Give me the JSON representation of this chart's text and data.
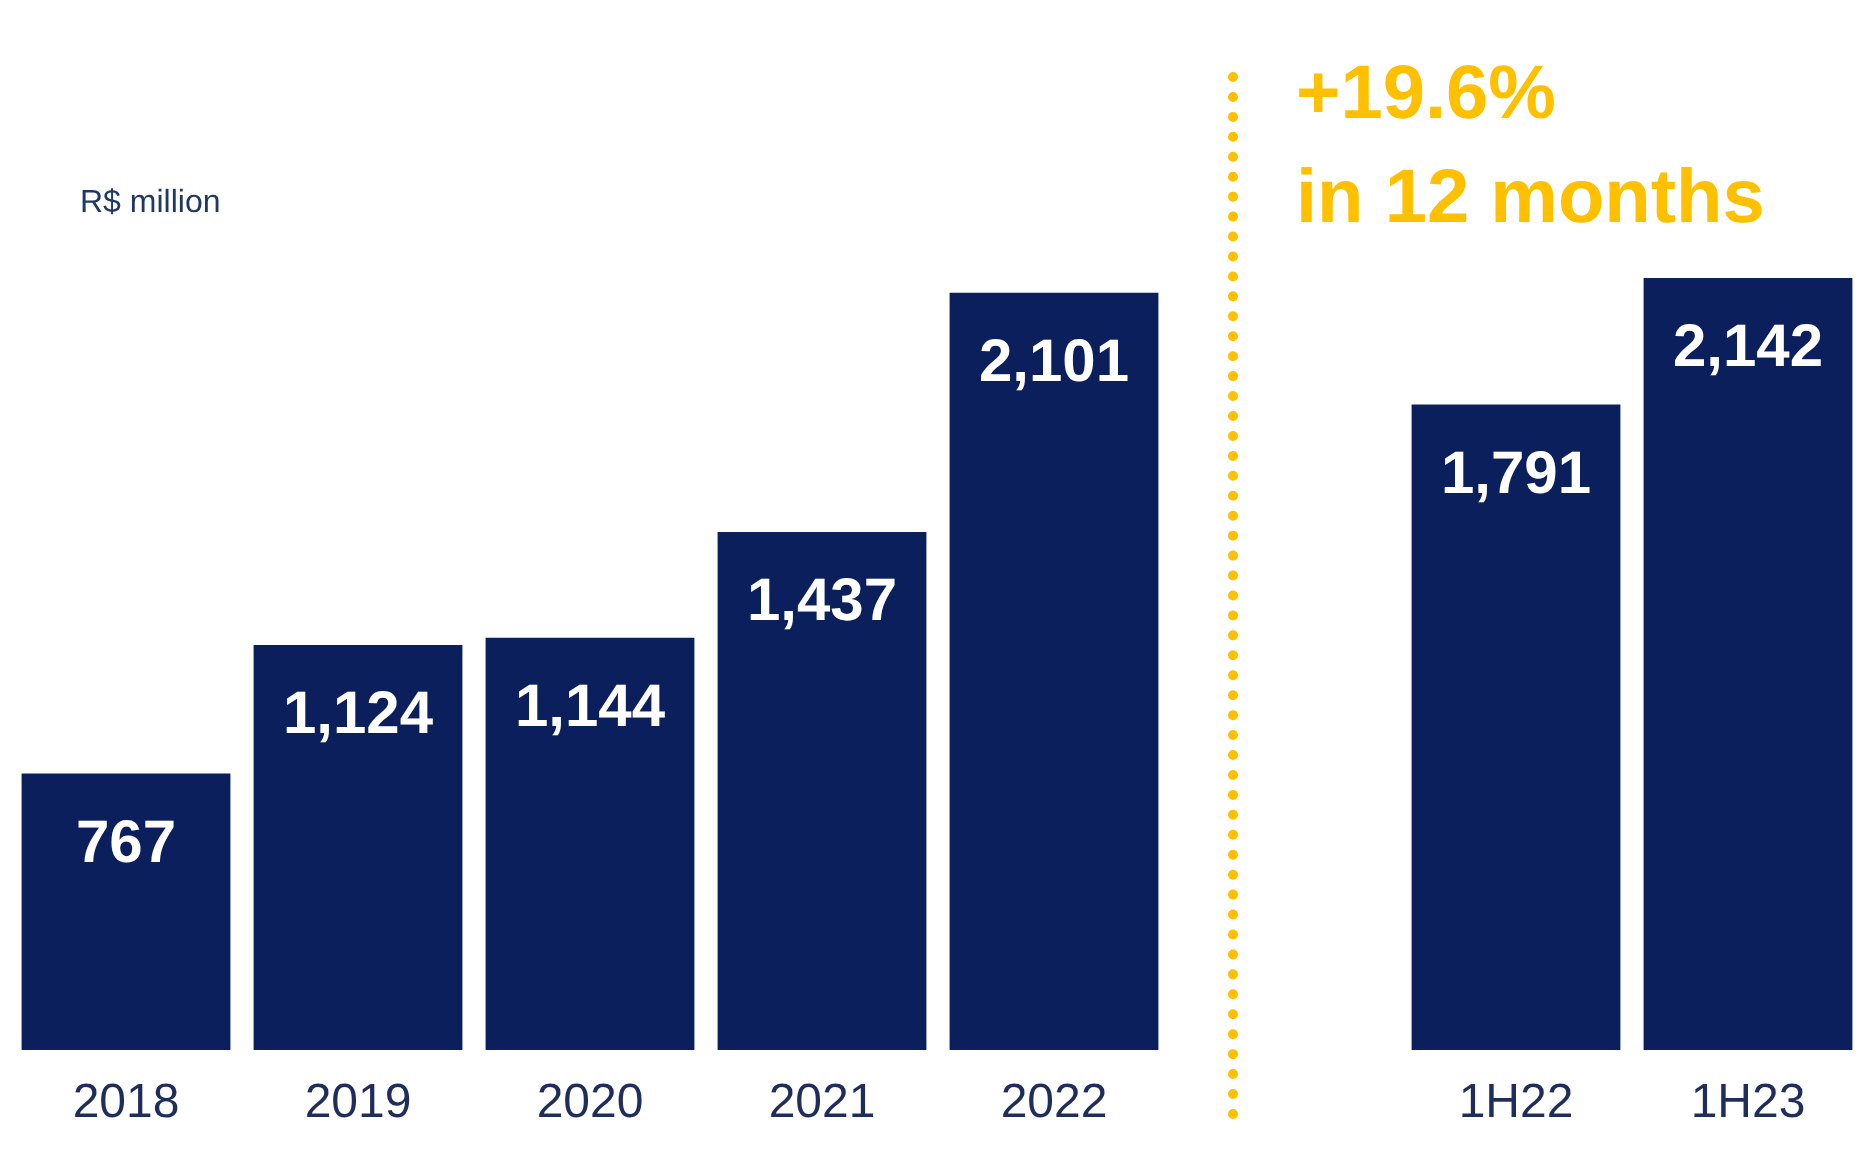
{
  "chart_data": [
    {
      "type": "bar",
      "ylabel": "R$ million",
      "categories": [
        "2018",
        "2019",
        "2020",
        "2021",
        "2022"
      ],
      "values": [
        767,
        1124,
        1144,
        1437,
        2101
      ],
      "value_labels": [
        "767",
        "1,124",
        "1,144",
        "1,437",
        "2,101"
      ],
      "color": "#0a1f5c"
    },
    {
      "type": "bar",
      "title": "+19.6%\nin 12 months",
      "categories": [
        "1H22",
        "1H23"
      ],
      "values": [
        1791,
        2142
      ],
      "value_labels": [
        "1,791",
        "2,142"
      ],
      "color": "#0a1f5c"
    }
  ]
}
